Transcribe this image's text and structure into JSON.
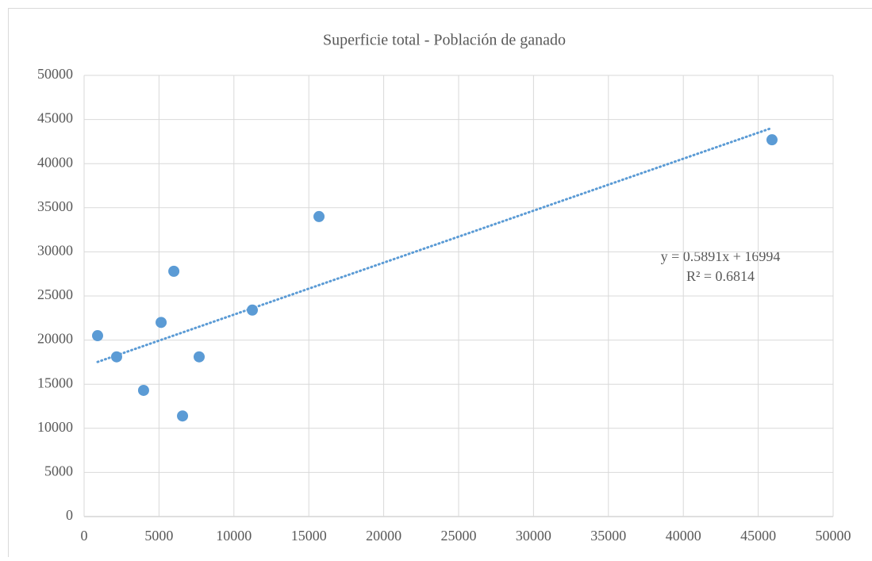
{
  "chart_data": {
    "type": "scatter",
    "title": "Superficie total - Población de ganado",
    "series": [
      {
        "color": "#5b9bd5",
        "x": [
          900,
          2170,
          3970,
          5140,
          5990,
          6570,
          7680,
          11230,
          15680,
          45920
        ],
        "values": [
          20500,
          18100,
          14300,
          22000,
          27800,
          11400,
          18100,
          23400,
          34000,
          42700
        ]
      }
    ],
    "trendline": {
      "slope": 0.5891,
      "intercept": 16994,
      "equation": "y = 0.5891x + 16994",
      "r2": "R² = 0.6814",
      "color": "#5b9bd5"
    },
    "xlim": [
      0,
      50000
    ],
    "xticks": [
      0,
      5000,
      10000,
      15000,
      20000,
      25000,
      30000,
      35000,
      40000,
      45000,
      50000
    ],
    "ylim": [
      0,
      50000
    ],
    "yticks": [
      0,
      5000,
      10000,
      15000,
      20000,
      25000,
      30000,
      35000,
      40000,
      45000,
      50000
    ],
    "grid": true
  }
}
